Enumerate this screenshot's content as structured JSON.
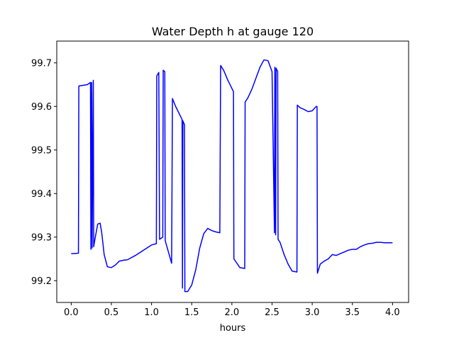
{
  "chart_data": {
    "type": "line",
    "title": "Water Depth h at gauge 120",
    "xlabel": "hours",
    "ylabel": "",
    "xlim": [
      -0.18,
      4.2
    ],
    "ylim": [
      99.15,
      99.75
    ],
    "xticks": [
      0.0,
      0.5,
      1.0,
      1.5,
      2.0,
      2.5,
      3.0,
      3.5,
      4.0
    ],
    "xtick_labels": [
      "0.0",
      "0.5",
      "1.0",
      "1.5",
      "2.0",
      "2.5",
      "3.0",
      "3.5",
      "4.0"
    ],
    "yticks": [
      99.2,
      99.3,
      99.4,
      99.5,
      99.6,
      99.7
    ],
    "ytick_labels": [
      "99.2",
      "99.3",
      "99.4",
      "99.5",
      "99.6",
      "99.7"
    ],
    "grid": false,
    "color": "#0000ff",
    "series": [
      {
        "name": "",
        "x": [
          0.0,
          0.09,
          0.095,
          0.2,
          0.24,
          0.245,
          0.255,
          0.26,
          0.275,
          0.28,
          0.3,
          0.33,
          0.36,
          0.38,
          0.41,
          0.45,
          0.5,
          0.55,
          0.6,
          0.65,
          0.7,
          0.8,
          0.9,
          1.0,
          1.06,
          1.065,
          1.09,
          1.1,
          1.14,
          1.145,
          1.165,
          1.17,
          1.25,
          1.26,
          1.3,
          1.38,
          1.385,
          1.39,
          1.41,
          1.415,
          1.45,
          1.5,
          1.55,
          1.6,
          1.65,
          1.7,
          1.75,
          1.8,
          1.85,
          1.86,
          1.9,
          1.95,
          2.02,
          2.025,
          2.1,
          2.16,
          2.165,
          2.2,
          2.25,
          2.3,
          2.35,
          2.4,
          2.45,
          2.5,
          2.53,
          2.535,
          2.545,
          2.55,
          2.57,
          2.575,
          2.6,
          2.65,
          2.7,
          2.75,
          2.81,
          2.815,
          2.85,
          2.9,
          2.95,
          3.0,
          3.05,
          3.06,
          3.065,
          3.1,
          3.15,
          3.2,
          3.25,
          3.3,
          3.35,
          3.4,
          3.45,
          3.5,
          3.55,
          3.6,
          3.65,
          3.7,
          3.75,
          3.8,
          3.85,
          3.9,
          3.95,
          4.0
        ],
        "y": [
          99.262,
          99.263,
          99.647,
          99.65,
          99.655,
          99.272,
          99.655,
          99.275,
          99.66,
          99.278,
          99.3,
          99.33,
          99.332,
          99.31,
          99.26,
          99.232,
          99.23,
          99.236,
          99.245,
          99.247,
          99.248,
          99.258,
          99.27,
          99.282,
          99.285,
          99.67,
          99.678,
          99.295,
          99.3,
          99.683,
          99.68,
          99.292,
          99.24,
          99.618,
          99.6,
          99.57,
          99.183,
          99.567,
          99.558,
          99.175,
          99.175,
          99.19,
          99.225,
          99.275,
          99.308,
          99.32,
          99.315,
          99.312,
          99.31,
          99.694,
          99.682,
          99.66,
          99.634,
          99.25,
          99.23,
          99.228,
          99.61,
          99.62,
          99.64,
          99.665,
          99.69,
          99.707,
          99.705,
          99.68,
          99.31,
          99.69,
          99.305,
          99.688,
          99.68,
          99.295,
          99.288,
          99.26,
          99.238,
          99.222,
          99.22,
          99.603,
          99.597,
          99.593,
          99.588,
          99.59,
          99.6,
          99.6,
          99.217,
          99.238,
          99.245,
          99.25,
          99.26,
          99.258,
          99.262,
          99.266,
          99.27,
          99.272,
          99.272,
          99.278,
          99.282,
          99.285,
          99.286,
          99.288,
          99.288,
          99.287,
          99.287,
          99.287
        ]
      }
    ]
  }
}
